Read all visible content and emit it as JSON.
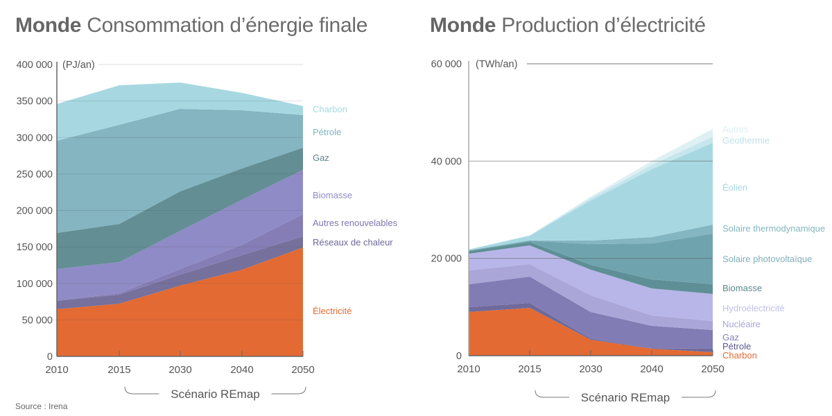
{
  "source": "Source : Irena",
  "charts_meta": [
    {
      "title_bold": "Monde",
      "title_rest": "Consommation d’énergie finale"
    },
    {
      "title_bold": "Monde",
      "title_rest": "Production d’électricité"
    }
  ],
  "chart_data": [
    {
      "type": "area",
      "stacked": true,
      "title": "Monde Consommation d’énergie finale",
      "unit": "(PJ/an)",
      "xlabel": "",
      "ylabel": "(PJ/an)",
      "categories": [
        "2010",
        "2015",
        "2030",
        "2040",
        "2050"
      ],
      "ylim": [
        0,
        400000
      ],
      "yticks": [
        0,
        50000,
        100000,
        150000,
        200000,
        250000,
        300000,
        350000,
        400000
      ],
      "ytick_labels": [
        "0",
        "50 000",
        "100 000",
        "150 000",
        "200 000",
        "250 000",
        "300 000",
        "350 000",
        "400 000"
      ],
      "grid": true,
      "legend_placement": "right",
      "annotation": "Scénario REmap",
      "annotation_span": [
        "2015",
        "2050"
      ],
      "series": [
        {
          "name": "Électricité",
          "color": "#e36a33",
          "label_color": "#e36a33",
          "values": [
            64600,
            72200,
            97000,
            118800,
            149200
          ]
        },
        {
          "name": "Réseaux de chaleur",
          "color": "#75709c",
          "label_color": "#6d6799",
          "values": [
            11400,
            12400,
            15000,
            19900,
            15200
          ]
        },
        {
          "name": "Autres renouvelables",
          "color": "#857eb6",
          "label_color": "#7d76b0",
          "values": [
            1000,
            1900,
            7700,
            14300,
            30400
          ]
        },
        {
          "name": "Biomasse",
          "color": "#8f8bc6",
          "label_color": "#8f8bc6",
          "values": [
            42700,
            42700,
            52300,
            61700,
            60800
          ]
        },
        {
          "name": "Gaz",
          "color": "#628e94",
          "label_color": "#5d868c",
          "values": [
            49400,
            52300,
            54100,
            42800,
            30400
          ]
        },
        {
          "name": "Pétrole",
          "color": "#84b5c1",
          "label_color": "#7fb2be",
          "values": [
            126400,
            135800,
            113100,
            79800,
            44600
          ]
        },
        {
          "name": "Charbon",
          "color": "#a7d8e2",
          "label_color": "#a7d8e2",
          "values": [
            50300,
            54200,
            36100,
            23700,
            12400
          ]
        }
      ]
    },
    {
      "type": "area",
      "stacked": true,
      "title": "Monde Production d’électricité",
      "unit": "(TWh/an)",
      "xlabel": "",
      "ylabel": "(TWh/an)",
      "categories": [
        "2010",
        "2015",
        "2030",
        "2040",
        "2050"
      ],
      "ylim": [
        0,
        60000
      ],
      "yticks": [
        0,
        20000,
        40000,
        60000
      ],
      "ytick_labels": [
        "0",
        "20 000",
        "40 000",
        "60 000"
      ],
      "grid": true,
      "legend_placement": "right",
      "annotation": "Scénario REmap",
      "annotation_span": [
        "2015",
        "2050"
      ],
      "series": [
        {
          "name": "Charbon",
          "color": "#e36a33",
          "label_color": "#e36a33",
          "values": [
            8980,
            9830,
            3280,
            1430,
            710
          ]
        },
        {
          "name": "Pétrole",
          "color": "#6f6a9b",
          "label_color": "#5b5692",
          "values": [
            1000,
            1000,
            220,
            70,
            720
          ]
        },
        {
          "name": "Gaz",
          "color": "#827cb4",
          "label_color": "#8580b8",
          "values": [
            4700,
            5420,
            5480,
            4630,
            3840
          ]
        },
        {
          "name": "Nucléaire",
          "color": "#aaa6d8",
          "label_color": "#aaa6d8",
          "values": [
            2850,
            2560,
            3420,
            2140,
            1860
          ]
        },
        {
          "name": "Hydroélectricité",
          "color": "#b8b6e8",
          "label_color": "#c2c0ea",
          "values": [
            3420,
            3850,
            5270,
            5550,
            5550
          ]
        },
        {
          "name": "Biomasse",
          "color": "#5f8f96",
          "label_color": "#5d888f",
          "values": [
            570,
            710,
            1000,
            1860,
            2000
          ]
        },
        {
          "name": "Solaire photovoltaïque",
          "color": "#6fa4ae",
          "label_color": "#7fb0ba",
          "values": [
            80,
            290,
            4280,
            7410,
            10400
          ]
        },
        {
          "name": "Solaire thermodynamique",
          "color": "#84b6c1",
          "label_color": "#84b6c1",
          "values": [
            50,
            40,
            710,
            1280,
            1860
          ]
        },
        {
          "name": "Éolien",
          "color": "#a7d8e2",
          "label_color": "#a7d8e2",
          "values": [
            150,
            950,
            8260,
            13970,
            16810
          ]
        },
        {
          "name": "Géothermie",
          "color": "#c6e6ed",
          "label_color": "#bfe2ea",
          "values": [
            50,
            50,
            480,
            860,
            1280
          ]
        },
        {
          "name": "Autres",
          "color": "#dff0f4",
          "label_color": "#ddeff3",
          "values": [
            50,
            50,
            300,
            800,
            1570
          ]
        }
      ]
    }
  ]
}
